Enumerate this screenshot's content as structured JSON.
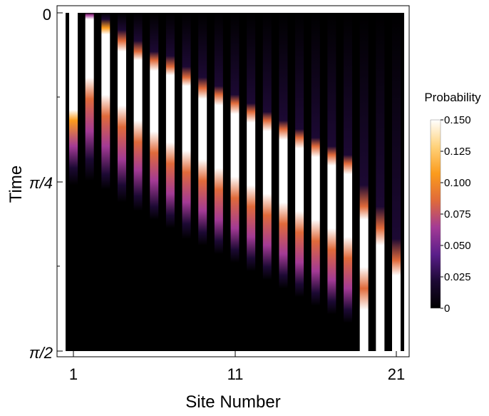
{
  "chart_data": {
    "type": "heatmap",
    "xlabel": "Site Number",
    "ylabel": "Time",
    "x_ticks": [
      "1",
      "11",
      "21"
    ],
    "y_ticks": [
      "0",
      "π/4",
      "π/2"
    ],
    "xlim": [
      1,
      21
    ],
    "ylim": [
      0,
      1.5708
    ],
    "y_direction": "down",
    "colorbar": {
      "title": "Probability",
      "range": [
        0,
        0.15
      ],
      "ticks": [
        "0",
        "0.025",
        "0.050",
        "0.075",
        "0.100",
        "0.125",
        "0.150"
      ]
    },
    "colors": [
      "#000000",
      "#1c0933",
      "#5a1e8a",
      "#a33a95",
      "#e06a3a",
      "#fb9b1c",
      "#ffd27a",
      "#ffffff"
    ],
    "sites": [
      1,
      2,
      3,
      4,
      5,
      6,
      7,
      8,
      9,
      10,
      11,
      12,
      13,
      14,
      15,
      16,
      17,
      18,
      19,
      20,
      21
    ],
    "profiles": [
      {
        "site": 1,
        "bands": [
          [
            0,
            0.15
          ],
          [
            0.45,
            0.15
          ],
          [
            0.5,
            0.1
          ],
          [
            0.62,
            0.06
          ],
          [
            0.72,
            0.025
          ],
          [
            0.8,
            0
          ]
        ]
      },
      {
        "site": 2,
        "bands": [
          [
            0,
            0
          ],
          [
            0.01,
            0.06
          ],
          [
            0.03,
            0.15
          ],
          [
            0.3,
            0.15
          ],
          [
            0.4,
            0.09
          ],
          [
            0.55,
            0.07
          ],
          [
            0.68,
            0.03
          ],
          [
            0.78,
            0
          ]
        ]
      },
      {
        "site": 3,
        "bands": [
          [
            0,
            0
          ],
          [
            0.03,
            0.02
          ],
          [
            0.07,
            0.1
          ],
          [
            0.1,
            0.15
          ],
          [
            0.38,
            0.15
          ],
          [
            0.48,
            0.09
          ],
          [
            0.62,
            0.07
          ],
          [
            0.75,
            0.025
          ],
          [
            0.82,
            0
          ]
        ]
      },
      {
        "site": 4,
        "bands": [
          [
            0,
            0
          ],
          [
            0.08,
            0.025
          ],
          [
            0.13,
            0.09
          ],
          [
            0.18,
            0.15
          ],
          [
            0.43,
            0.15
          ],
          [
            0.53,
            0.09
          ],
          [
            0.68,
            0.07
          ],
          [
            0.8,
            0.025
          ],
          [
            0.88,
            0
          ]
        ]
      },
      {
        "site": 5,
        "bands": [
          [
            0,
            0
          ],
          [
            0.13,
            0.025
          ],
          [
            0.18,
            0.09
          ],
          [
            0.22,
            0.15
          ],
          [
            0.5,
            0.15
          ],
          [
            0.6,
            0.09
          ],
          [
            0.73,
            0.07
          ],
          [
            0.85,
            0.025
          ],
          [
            0.92,
            0
          ]
        ]
      },
      {
        "site": 6,
        "bands": [
          [
            0,
            0
          ],
          [
            0.18,
            0.025
          ],
          [
            0.22,
            0.09
          ],
          [
            0.27,
            0.15
          ],
          [
            0.55,
            0.15
          ],
          [
            0.65,
            0.09
          ],
          [
            0.78,
            0.07
          ],
          [
            0.9,
            0.025
          ],
          [
            0.96,
            0
          ]
        ]
      },
      {
        "site": 7,
        "bands": [
          [
            0,
            0
          ],
          [
            0.2,
            0.025
          ],
          [
            0.25,
            0.09
          ],
          [
            0.29,
            0.15
          ],
          [
            0.6,
            0.15
          ],
          [
            0.7,
            0.09
          ],
          [
            0.84,
            0.07
          ],
          [
            0.94,
            0.025
          ],
          [
            1.0,
            0
          ]
        ]
      },
      {
        "site": 8,
        "bands": [
          [
            0,
            0
          ],
          [
            0.25,
            0.025
          ],
          [
            0.3,
            0.09
          ],
          [
            0.34,
            0.15
          ],
          [
            0.64,
            0.15
          ],
          [
            0.74,
            0.09
          ],
          [
            0.88,
            0.07
          ],
          [
            0.98,
            0.025
          ],
          [
            1.05,
            0
          ]
        ]
      },
      {
        "site": 9,
        "bands": [
          [
            0,
            0
          ],
          [
            0.3,
            0.025
          ],
          [
            0.35,
            0.09
          ],
          [
            0.4,
            0.15
          ],
          [
            0.68,
            0.15
          ],
          [
            0.78,
            0.09
          ],
          [
            0.92,
            0.07
          ],
          [
            1.02,
            0.025
          ],
          [
            1.08,
            0
          ]
        ]
      },
      {
        "site": 10,
        "bands": [
          [
            0,
            0
          ],
          [
            0.34,
            0.025
          ],
          [
            0.38,
            0.09
          ],
          [
            0.43,
            0.15
          ],
          [
            0.72,
            0.15
          ],
          [
            0.82,
            0.09
          ],
          [
            0.96,
            0.07
          ],
          [
            1.06,
            0.025
          ],
          [
            1.12,
            0
          ]
        ]
      },
      {
        "site": 11,
        "bands": [
          [
            0,
            0
          ],
          [
            0.38,
            0.025
          ],
          [
            0.42,
            0.09
          ],
          [
            0.47,
            0.15
          ],
          [
            0.76,
            0.15
          ],
          [
            0.86,
            0.09
          ],
          [
            1.0,
            0.07
          ],
          [
            1.1,
            0.025
          ],
          [
            1.16,
            0
          ]
        ]
      },
      {
        "site": 12,
        "bands": [
          [
            0,
            0
          ],
          [
            0.42,
            0.025
          ],
          [
            0.46,
            0.09
          ],
          [
            0.51,
            0.15
          ],
          [
            0.8,
            0.15
          ],
          [
            0.9,
            0.09
          ],
          [
            1.04,
            0.07
          ],
          [
            1.14,
            0.025
          ],
          [
            1.2,
            0
          ]
        ]
      },
      {
        "site": 13,
        "bands": [
          [
            0,
            0
          ],
          [
            0.46,
            0.025
          ],
          [
            0.5,
            0.09
          ],
          [
            0.55,
            0.15
          ],
          [
            0.84,
            0.15
          ],
          [
            0.94,
            0.09
          ],
          [
            1.08,
            0.07
          ],
          [
            1.18,
            0.025
          ],
          [
            1.24,
            0
          ]
        ]
      },
      {
        "site": 14,
        "bands": [
          [
            0,
            0
          ],
          [
            0.5,
            0.025
          ],
          [
            0.54,
            0.09
          ],
          [
            0.59,
            0.15
          ],
          [
            0.88,
            0.15
          ],
          [
            0.98,
            0.09
          ],
          [
            1.12,
            0.07
          ],
          [
            1.22,
            0.025
          ],
          [
            1.28,
            0
          ]
        ]
      },
      {
        "site": 15,
        "bands": [
          [
            0,
            0
          ],
          [
            0.54,
            0.025
          ],
          [
            0.58,
            0.09
          ],
          [
            0.63,
            0.15
          ],
          [
            0.92,
            0.15
          ],
          [
            1.02,
            0.09
          ],
          [
            1.16,
            0.07
          ],
          [
            1.26,
            0.025
          ],
          [
            1.32,
            0
          ]
        ]
      },
      {
        "site": 16,
        "bands": [
          [
            0,
            0
          ],
          [
            0.58,
            0.025
          ],
          [
            0.62,
            0.09
          ],
          [
            0.67,
            0.15
          ],
          [
            0.96,
            0.15
          ],
          [
            1.06,
            0.09
          ],
          [
            1.2,
            0.07
          ],
          [
            1.3,
            0.025
          ],
          [
            1.36,
            0
          ]
        ]
      },
      {
        "site": 17,
        "bands": [
          [
            0,
            0
          ],
          [
            0.62,
            0.025
          ],
          [
            0.66,
            0.09
          ],
          [
            0.71,
            0.15
          ],
          [
            1.0,
            0.15
          ],
          [
            1.1,
            0.09
          ],
          [
            1.24,
            0.07
          ],
          [
            1.34,
            0.025
          ],
          [
            1.4,
            0
          ]
        ]
      },
      {
        "site": 18,
        "bands": [
          [
            0,
            0
          ],
          [
            0.66,
            0.025
          ],
          [
            0.7,
            0.09
          ],
          [
            0.75,
            0.15
          ],
          [
            1.04,
            0.15
          ],
          [
            1.14,
            0.09
          ],
          [
            1.28,
            0.07
          ],
          [
            1.38,
            0.025
          ],
          [
            1.44,
            0
          ]
        ]
      },
      {
        "site": 19,
        "bands": [
          [
            0,
            0
          ],
          [
            0.8,
            0.025
          ],
          [
            0.9,
            0.09
          ],
          [
            0.96,
            0.15
          ],
          [
            1.18,
            0.15
          ],
          [
            1.28,
            0.09
          ],
          [
            1.38,
            0.15
          ],
          [
            1.5708,
            0.15
          ]
        ]
      },
      {
        "site": 20,
        "bands": [
          [
            0,
            0
          ],
          [
            0.9,
            0.025
          ],
          [
            1.0,
            0.09
          ],
          [
            1.08,
            0.15
          ],
          [
            1.5708,
            0.15
          ]
        ]
      },
      {
        "site": 21,
        "bands": [
          [
            0,
            0
          ],
          [
            1.05,
            0.025
          ],
          [
            1.15,
            0.09
          ],
          [
            1.22,
            0.15
          ],
          [
            1.5708,
            0.15
          ]
        ]
      }
    ]
  }
}
